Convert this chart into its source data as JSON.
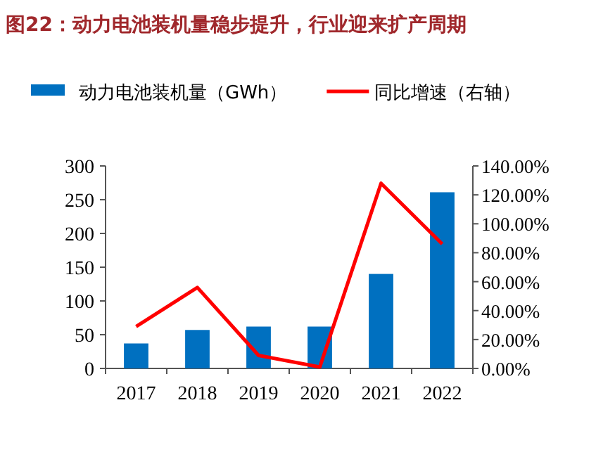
{
  "chart_data": {
    "type": "bar",
    "title": "图22：动力电池装机量稳步提升，行业迎来扩产周期",
    "categories": [
      "2017",
      "2018",
      "2019",
      "2020",
      "2021",
      "2022"
    ],
    "series": [
      {
        "name": "动力电池装机量（GWh）",
        "color": "#0070c0",
        "values": [
          37,
          57,
          62,
          62,
          140,
          261
        ]
      },
      {
        "name": "同比增速（右轴）",
        "type": "line",
        "axis": "y2",
        "color": "#ff0000",
        "values": [
          29,
          56,
          9,
          1,
          128,
          86
        ]
      }
    ],
    "ylim": [
      0,
      300
    ],
    "yticks": [
      0,
      50,
      100,
      150,
      200,
      250,
      300
    ],
    "y2lim": [
      0,
      140
    ],
    "y2ticks": [
      {
        "value": 0,
        "label": "0.00%"
      },
      {
        "value": 20,
        "label": "20.00%"
      },
      {
        "value": 40,
        "label": "40.00%"
      },
      {
        "value": 60,
        "label": "60.00%"
      },
      {
        "value": 80,
        "label": "80.00%"
      },
      {
        "value": 100,
        "label": "100.00%"
      },
      {
        "value": 120,
        "label": "120.00%"
      },
      {
        "value": 140,
        "label": "140.00%"
      }
    ],
    "legend": "top",
    "grid": false,
    "marker": "none",
    "line_style": "solid"
  }
}
